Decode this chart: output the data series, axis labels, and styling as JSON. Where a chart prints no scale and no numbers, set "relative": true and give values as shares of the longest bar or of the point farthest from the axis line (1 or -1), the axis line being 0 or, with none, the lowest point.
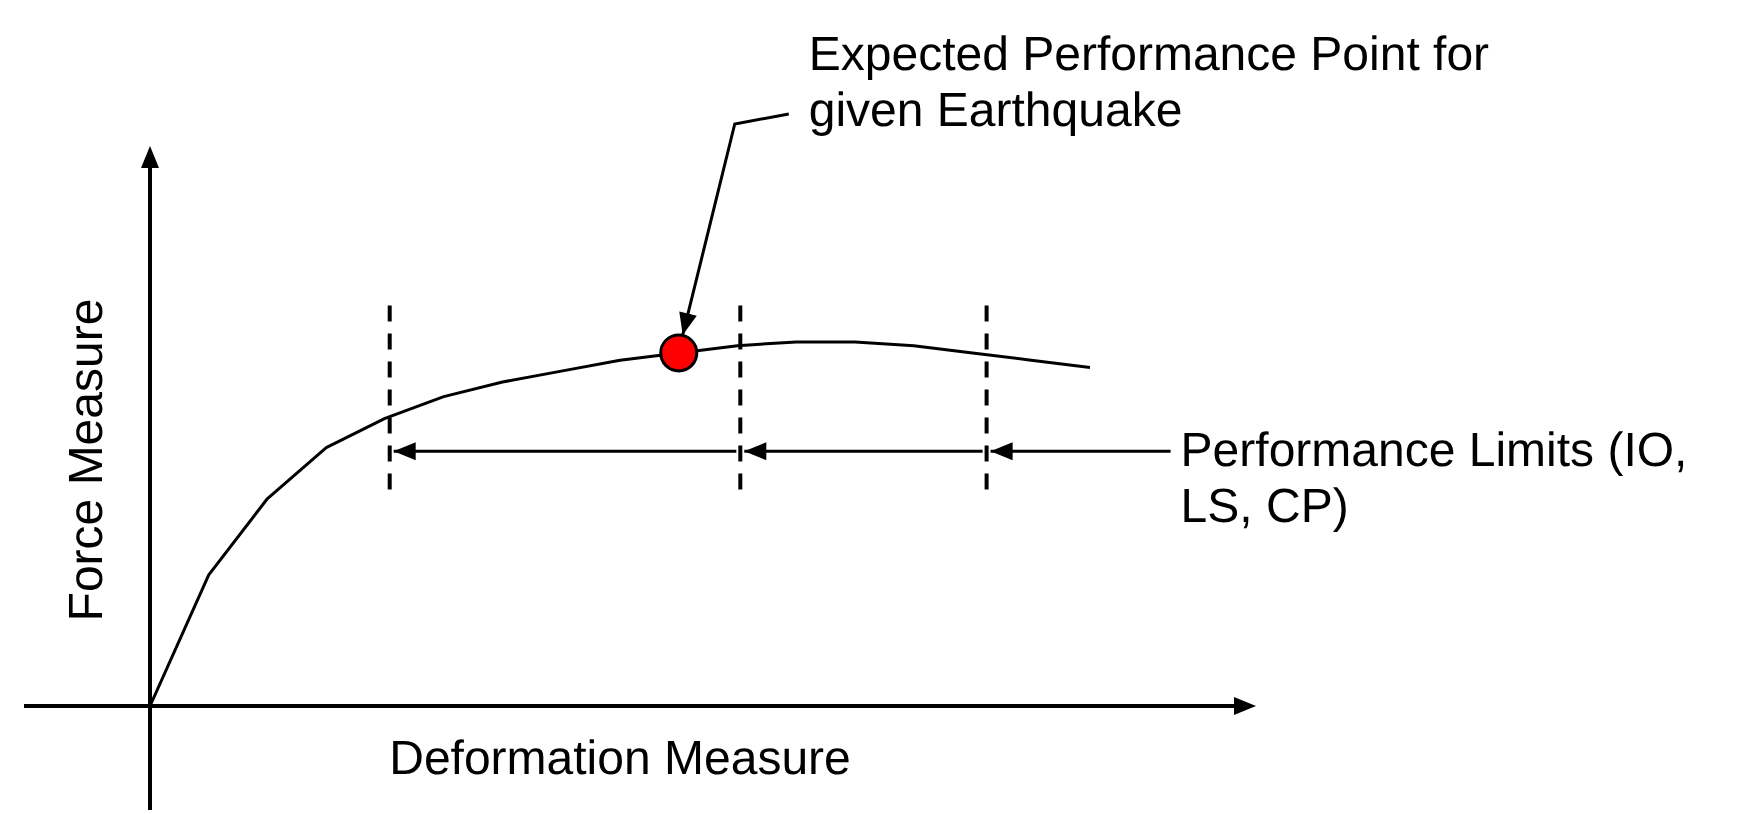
{
  "chart_data": {
    "type": "line",
    "relative": true,
    "xlabel": "Deformation Measure",
    "ylabel": "Force Measure",
    "legend": false,
    "categories": [
      null,
      null,
      null,
      null,
      null,
      null,
      null,
      null,
      null,
      null,
      null,
      null,
      null,
      null,
      null,
      null,
      null
    ],
    "series": [
      {
        "type": "line",
        "color": "#000000",
        "marker": "none",
        "line_style": "solid",
        "values": [
          0,
          0.36,
          0.57,
          0.71,
          0.79,
          0.85,
          0.89,
          0.92,
          0.95,
          0.97,
          0.99,
          1,
          1,
          0.99,
          0.97,
          0.95,
          0.93
        ]
      }
    ],
    "annotations": [
      "Expected Performance Point for given Earthquake",
      "Performance Limits (IO, LS, CP)"
    ]
  }
}
